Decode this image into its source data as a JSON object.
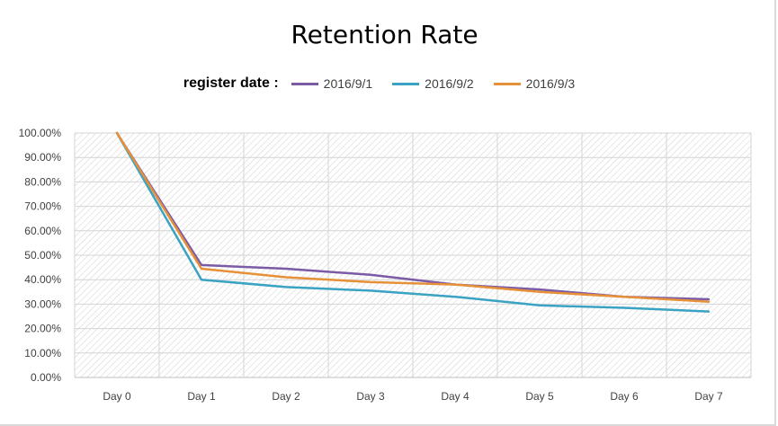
{
  "chart_data": {
    "type": "line",
    "title": "Retention Rate",
    "legend": {
      "title": "register date :",
      "placement": "top"
    },
    "categories": [
      "Day 0",
      "Day 1",
      "Day 2",
      "Day 3",
      "Day 4",
      "Day 5",
      "Day 6",
      "Day 7"
    ],
    "y_tick_labels": [
      "0.00%",
      "10.00%",
      "20.00%",
      "30.00%",
      "40.00%",
      "50.00%",
      "60.00%",
      "70.00%",
      "80.00%",
      "90.00%",
      "100.00%"
    ],
    "ylim": [
      0,
      1
    ],
    "grid": true,
    "series": [
      {
        "name": "2016/9/1",
        "color": "#7b5aa6",
        "values": [
          1.0,
          0.46,
          0.445,
          0.42,
          0.38,
          0.36,
          0.33,
          0.32
        ]
      },
      {
        "name": "2016/9/2",
        "color": "#3aa2c2",
        "values": [
          1.0,
          0.4,
          0.37,
          0.355,
          0.33,
          0.295,
          0.285,
          0.27
        ]
      },
      {
        "name": "2016/9/3",
        "color": "#e69138",
        "values": [
          1.0,
          0.445,
          0.41,
          0.39,
          0.38,
          0.35,
          0.33,
          0.31
        ]
      }
    ]
  }
}
